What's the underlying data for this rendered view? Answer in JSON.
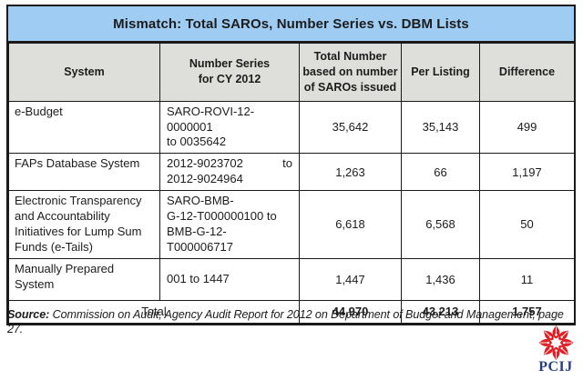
{
  "title": "Mismatch: Total SAROs, Number Series vs. DBM Lists",
  "colors": {
    "title_bg": "#9FCCF3",
    "header_bg": "#DEDEDA",
    "border": "#1A1A1A",
    "text": "#1C1C1C",
    "logo_red": "#DF2127",
    "logo_blue": "#2B3D85",
    "page_bg": "#FFFFFF"
  },
  "table": {
    "columns": [
      "System",
      "Number Series\nfor CY 2012",
      "Total Number\nbased on number\nof SAROs issued",
      "Per Listing",
      "Difference"
    ],
    "rows": [
      {
        "system": "e-Budget",
        "series_lines": [
          "SARO-ROVI-12-0000001",
          "to 0035642"
        ],
        "total": "35,642",
        "per_listing": "35,143",
        "difference": "499"
      },
      {
        "system": "FAPs Database System",
        "series_lines": [
          [
            "2012-9023702",
            "to"
          ],
          "2012-9024964"
        ],
        "total": "1,263",
        "per_listing": "66",
        "difference": "1,197"
      },
      {
        "system": "Electronic Transparency\nand Accountability\nInitiatives for Lump Sum\nFunds (e-Tails)",
        "series_lines": [
          "SARO-BMB-",
          "G-12-T000000100 to",
          "BMB-G-12-T000006717"
        ],
        "total": "6,618",
        "per_listing": "6,568",
        "difference": "50"
      },
      {
        "system": "Manually Prepared\nSystem",
        "series_lines": [
          "001 to 1447"
        ],
        "total": "1,447",
        "per_listing": "1,436",
        "difference": "11"
      }
    ],
    "total_row": {
      "label": "Total",
      "total": "44,970",
      "per_listing": "43,213",
      "difference": "1,757"
    }
  },
  "source": {
    "label": "Source:",
    "text": "Commission on Audit, Agency Audit Report for 2012 on Department of Budget and Management, page 27."
  },
  "logo": {
    "text": "PCIJ"
  }
}
